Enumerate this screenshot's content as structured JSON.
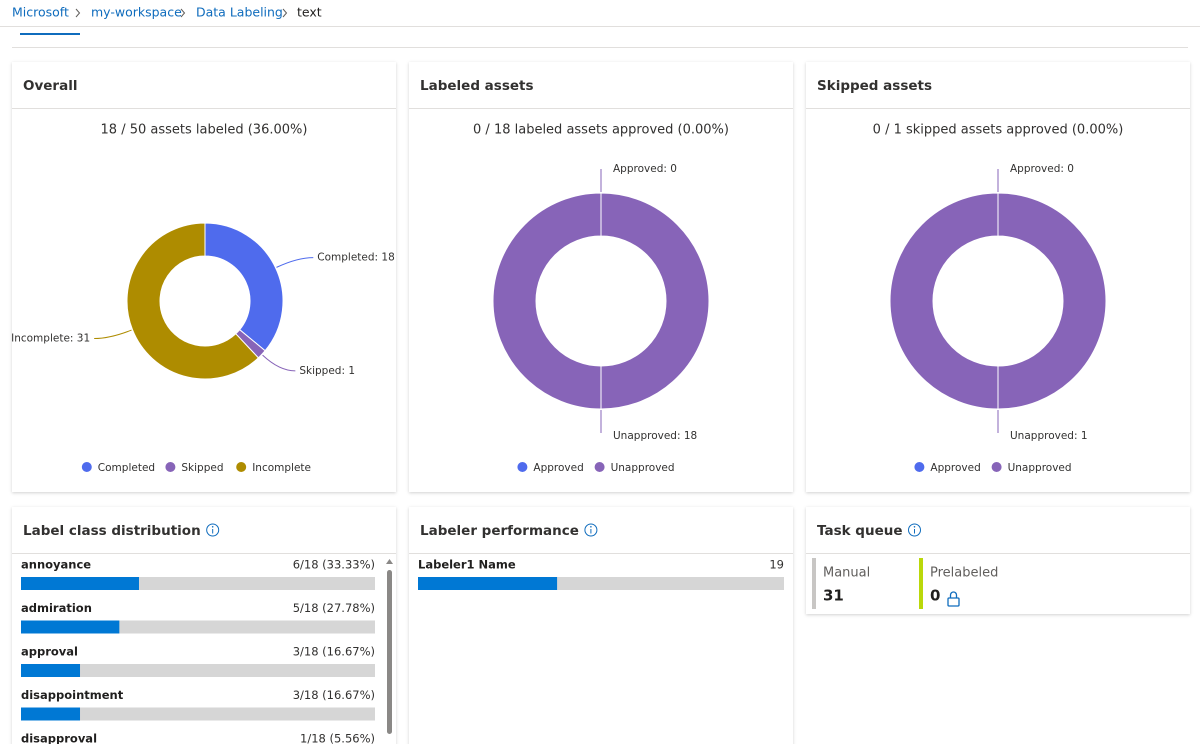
{
  "breadcrumb": [
    "Microsoft",
    "my-workspace",
    "Data Labeling",
    "text"
  ],
  "chart_data": [
    {
      "type": "donut",
      "title": "Overall",
      "subtitle": "18 / 50 assets labeled (36.00%)",
      "categories": [
        "Completed",
        "Skipped",
        "Incomplete"
      ],
      "values": [
        18,
        1,
        31
      ],
      "value_labels": [
        "Completed: 18",
        "Skipped: 1",
        "Incomplete: 31"
      ],
      "colors": [
        "#4f6bed",
        "#8764b8",
        "#ae8c00"
      ],
      "legend": "bottom"
    },
    {
      "type": "donut",
      "title": "Labeled assets",
      "subtitle": "0 / 18 labeled assets approved (0.00%)",
      "categories": [
        "Approved",
        "Unapproved"
      ],
      "values": [
        0,
        18
      ],
      "value_labels": [
        "Approved: 0",
        "Unapproved: 18"
      ],
      "colors": [
        "#4f6bed",
        "#8764b8"
      ],
      "legend": "bottom"
    },
    {
      "type": "donut",
      "title": "Skipped assets",
      "subtitle": "0 / 1 skipped assets approved (0.00%)",
      "categories": [
        "Approved",
        "Unapproved"
      ],
      "values": [
        0,
        1
      ],
      "value_labels": [
        "Approved: 0",
        "Unapproved: 1"
      ],
      "colors": [
        "#4f6bed",
        "#8764b8"
      ],
      "legend": "bottom"
    },
    {
      "type": "hbar",
      "title": "Label class distribution",
      "categories": [
        "annoyance",
        "admiration",
        "approval",
        "disappointment",
        "disapproval"
      ],
      "values": [
        33.33,
        27.78,
        16.67,
        16.67,
        5.56
      ],
      "value_labels": [
        "6/18 (33.33%)",
        "5/18 (27.78%)",
        "3/18 (16.67%)",
        "3/18 (16.67%)",
        "1/18 (5.56%)"
      ],
      "xlim": [
        0,
        100
      ],
      "color": "#0078d4"
    },
    {
      "type": "hbar",
      "title": "Labeler performance",
      "categories": [
        "Labeler1 Name"
      ],
      "values": [
        19
      ],
      "xlim": [
        0,
        50
      ],
      "color": "#0078d4"
    }
  ],
  "task_queue": {
    "title": "Task queue",
    "items": [
      {
        "label": "Manual",
        "value": 31,
        "color": "#c8c6c4"
      },
      {
        "label": "Prelabeled",
        "value": 0,
        "color": "#bad80a"
      }
    ]
  }
}
